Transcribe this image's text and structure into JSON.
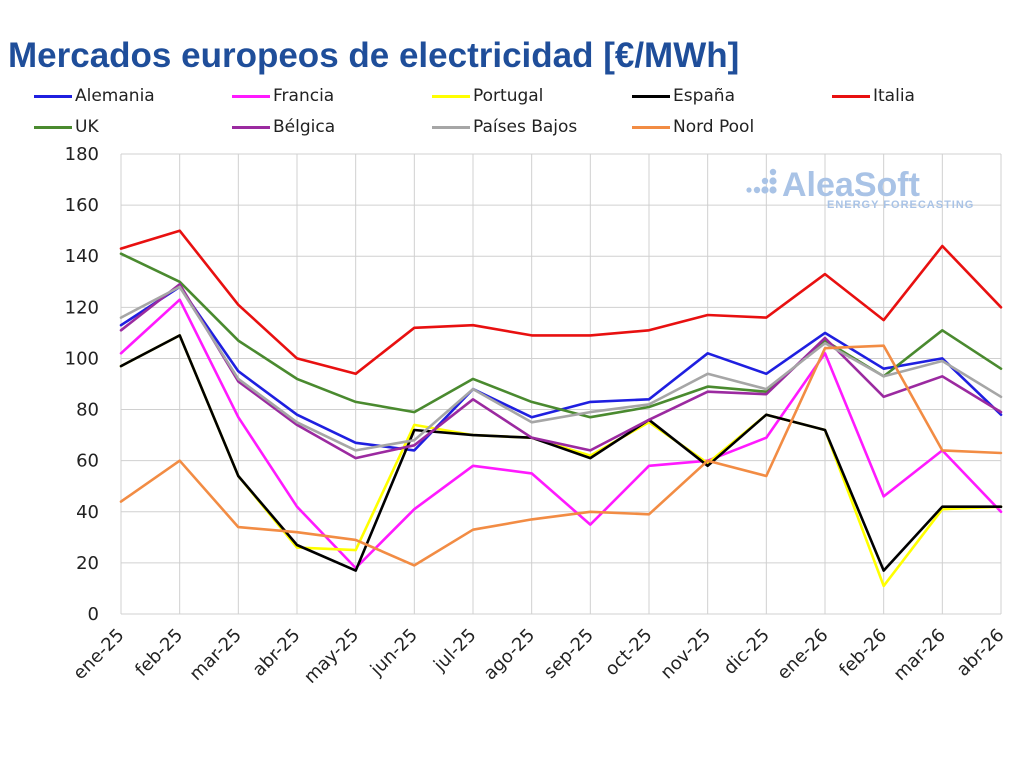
{
  "title": "Mercados europeos de electricidad [€/MWh]",
  "logo": {
    "name": "AleaSoft",
    "tagline": "ENERGY FORECASTING"
  },
  "chart_data": {
    "type": "line",
    "title": "Mercados europeos de electricidad [€/MWh]",
    "xlabel": "",
    "ylabel": "",
    "ylim": [
      0,
      180
    ],
    "yticks": [
      0,
      20,
      40,
      60,
      80,
      100,
      120,
      140,
      160,
      180
    ],
    "grid": true,
    "legend_position": "top",
    "categories": [
      "ene-25",
      "feb-25",
      "mar-25",
      "abr-25",
      "may-25",
      "jun-25",
      "jul-25",
      "ago-25",
      "sep-25",
      "oct-25",
      "nov-25",
      "dic-25",
      "ene-26",
      "feb-26",
      "mar-26",
      "abr-26"
    ],
    "series": [
      {
        "name": "Alemania",
        "color": "#1f1fe0",
        "values": [
          113,
          128,
          95,
          78,
          67,
          64,
          88,
          77,
          83,
          84,
          102,
          94,
          110,
          96,
          100,
          78
        ]
      },
      {
        "name": "Francia",
        "color": "#ff1aff",
        "values": [
          102,
          123,
          77,
          42,
          18,
          41,
          58,
          55,
          35,
          58,
          60,
          69,
          102,
          46,
          64,
          40
        ]
      },
      {
        "name": "Portugal",
        "color": "#ffff00",
        "values": [
          97,
          109,
          54,
          26,
          25,
          74,
          70,
          69,
          62,
          75,
          59,
          78,
          72,
          11,
          41,
          42
        ]
      },
      {
        "name": "España",
        "color": "#000000",
        "values": [
          97,
          109,
          54,
          27,
          17,
          72,
          70,
          69,
          61,
          76,
          58,
          78,
          72,
          17,
          42,
          42
        ]
      },
      {
        "name": "Italia",
        "color": "#e81010",
        "values": [
          143,
          150,
          121,
          100,
          94,
          112,
          113,
          109,
          109,
          111,
          117,
          116,
          133,
          115,
          144,
          120
        ]
      },
      {
        "name": "UK",
        "color": "#4a8a2f",
        "values": [
          141,
          130,
          107,
          92,
          83,
          79,
          92,
          83,
          77,
          81,
          89,
          87,
          107,
          93,
          111,
          96
        ]
      },
      {
        "name": "Bélgica",
        "color": "#9b2aa0",
        "values": [
          111,
          129,
          91,
          74,
          61,
          66,
          84,
          69,
          64,
          76,
          87,
          86,
          108,
          85,
          93,
          79
        ]
      },
      {
        "name": "Países Bajos",
        "color": "#a6a6a6",
        "values": [
          116,
          128,
          92,
          75,
          64,
          68,
          88,
          75,
          79,
          82,
          94,
          88,
          106,
          93,
          99,
          85
        ]
      },
      {
        "name": "Nord Pool",
        "color": "#f28c44",
        "values": [
          44,
          60,
          34,
          32,
          29,
          19,
          33,
          37,
          40,
          39,
          60,
          54,
          104,
          105,
          64,
          63
        ]
      }
    ]
  }
}
